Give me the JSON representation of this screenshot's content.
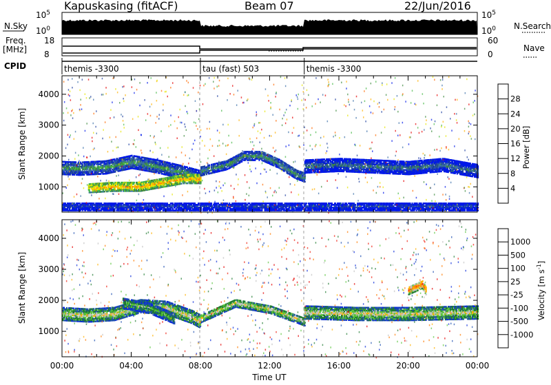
{
  "header": {
    "station": "Kapuskasing (fitACF)",
    "beam": "Beam 07",
    "date": "22/Jun/2016"
  },
  "panels": {
    "nsky": {
      "label": "N.Sky",
      "ticks": [
        "10^5",
        "10^0"
      ]
    },
    "nsearch": {
      "label": "N.Search",
      "ticks": [
        "10^5",
        "10^0"
      ]
    },
    "freq": {
      "label_top": "Freq.",
      "label_unit": "[MHz]",
      "ticks": [
        "18",
        "8"
      ]
    },
    "nave": {
      "label": "Nave",
      "ticks": [
        "60",
        "0"
      ]
    },
    "cpid": {
      "label": "CPID"
    }
  },
  "colors": {
    "power": [
      "#0018e8",
      "#1c3ea0",
      "#3a6fa8",
      "#3d8a3d",
      "#46b846",
      "#e6e600",
      "#ffb000",
      "#ff6a00",
      "#e60000"
    ],
    "velocity": [
      "#0a2bd8",
      "#1d4fb0",
      "#1f7a30",
      "#58c43a",
      "#c2c2c2",
      "#ffb000",
      "#ff7a00",
      "#f02010",
      "#e40000"
    ]
  },
  "chart_data": [
    {
      "type": "heatmap",
      "name": "CPID",
      "segments": [
        {
          "label": "themis -3300",
          "start_hour": 0,
          "end_hour": 8
        },
        {
          "label": "tau (fast) 503",
          "start_hour": 8,
          "end_hour": 14
        },
        {
          "label": "themis -3300",
          "start_hour": 14,
          "end_hour": 24
        }
      ],
      "xlim": [
        0,
        24
      ]
    },
    {
      "type": "heatmap",
      "name": "Power",
      "ylabel": "Slant Range [km]",
      "xlabel": "",
      "xlim": [
        0,
        24
      ],
      "ylim": [
        180,
        4600
      ],
      "yticks": [
        "1000",
        "2000",
        "3000",
        "4000"
      ],
      "colorbar": {
        "label": "Power [dB]",
        "ticks": [
          "4",
          "8",
          "12",
          "16",
          "20",
          "24",
          "28"
        ]
      },
      "bands": [
        {
          "x": [
            0.0,
            1.0,
            2.5,
            4.0,
            5.5,
            7.0,
            8.0
          ],
          "y_center": [
            1600,
            1580,
            1620,
            1800,
            1650,
            1450,
            1300
          ],
          "thickness": 420,
          "power": 14
        },
        {
          "x": [
            1.5,
            3.0,
            4.5,
            6.0,
            7.0,
            8.0
          ],
          "y_center": [
            950,
            1000,
            1000,
            1150,
            1250,
            1250
          ],
          "thickness": 300,
          "power": 22
        },
        {
          "x": [
            8.0,
            9.5,
            10.5,
            11.5,
            12.5,
            13.5,
            14.0
          ],
          "y_center": [
            1500,
            1700,
            2000,
            2000,
            1750,
            1400,
            1300
          ],
          "thickness": 300,
          "power": 14
        },
        {
          "x": [
            14.0,
            16.0,
            18.0,
            20.0,
            22.0,
            24.0
          ],
          "y_center": [
            1650,
            1700,
            1650,
            1600,
            1700,
            1500
          ],
          "thickness": 420,
          "power": 10
        },
        {
          "x": [
            0.0,
            6.0,
            12.0,
            18.0,
            24.0
          ],
          "y_center": [
            350,
            350,
            350,
            350,
            350
          ],
          "thickness": 260,
          "power": 6
        }
      ]
    },
    {
      "type": "heatmap",
      "name": "Velocity",
      "ylabel": "Slant Range [km]",
      "xlabel": "Time UT",
      "xlim": [
        0,
        24
      ],
      "ylim": [
        180,
        4600
      ],
      "xticks": [
        "00:00",
        "04:00",
        "08:00",
        "12:00",
        "16:00",
        "20:00",
        "00:00"
      ],
      "yticks": [
        "1000",
        "2000",
        "3000",
        "4000"
      ],
      "colorbar": {
        "label": "Velocity [m s^-1]",
        "ticks": [
          "1000",
          "500",
          "100",
          "25",
          "-25",
          "-100",
          "-500",
          "-1000"
        ]
      },
      "bands": [
        {
          "x": [
            0.0,
            1.5,
            3.0,
            4.5,
            6.0,
            7.5,
            8.0
          ],
          "y_center": [
            1550,
            1500,
            1550,
            1800,
            1750,
            1450,
            1300
          ],
          "thickness": 420,
          "velocity": 0
        },
        {
          "x": [
            3.5,
            5.0,
            6.5
          ],
          "y_center": [
            1900,
            1750,
            1400
          ],
          "thickness": 350,
          "velocity": 150
        },
        {
          "x": [
            8.0,
            10.0,
            12.0,
            14.0
          ],
          "y_center": [
            1400,
            1900,
            1700,
            1300
          ],
          "thickness": 260,
          "velocity": 0
        },
        {
          "x": [
            14.0,
            17.0,
            20.0,
            24.0
          ],
          "y_center": [
            1600,
            1550,
            1550,
            1600
          ],
          "thickness": 420,
          "velocity": 0
        },
        {
          "x": [
            20.0,
            20.8,
            21.0
          ],
          "y_center": [
            2300,
            2500,
            2300
          ],
          "thickness": 250,
          "velocity": -200
        }
      ]
    }
  ]
}
